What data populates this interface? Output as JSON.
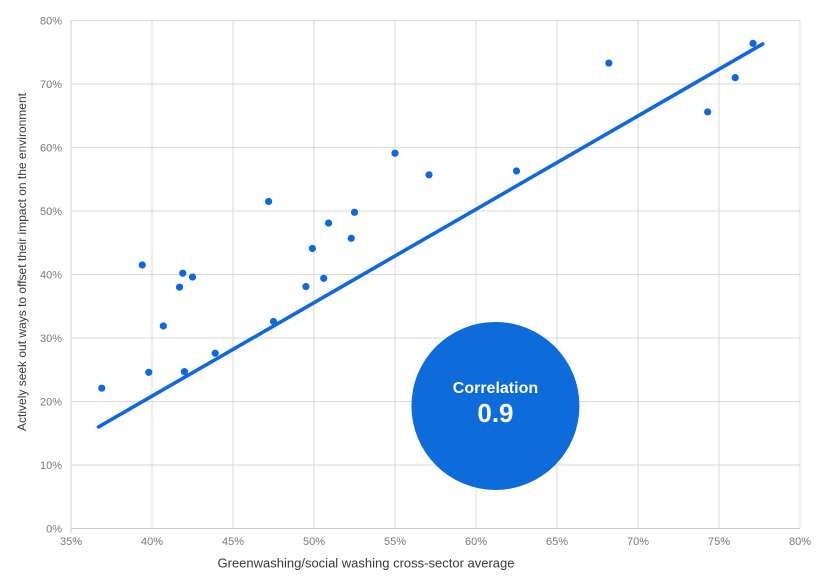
{
  "chart_data": {
    "type": "scatter",
    "title": "",
    "x_axis": {
      "title": "Greenwashing/social washing cross-sector average",
      "min": 35,
      "max": 80,
      "tick_labels": [
        "35%",
        "40%",
        "45%",
        "50%",
        "55%",
        "60%",
        "65%",
        "70%",
        "75%",
        "80%"
      ]
    },
    "y_axis": {
      "title": "Actively seek out ways to offset  their impact on the environment",
      "min": 0,
      "max": 80,
      "tick_labels": [
        "0%",
        "10%",
        "20%",
        "30%",
        "40%",
        "50%",
        "60%",
        "70%",
        "80%"
      ]
    },
    "grid": true,
    "legend": "none",
    "points": [
      [
        36.9,
        22.1
      ],
      [
        39.4,
        41.5
      ],
      [
        39.8,
        24.6
      ],
      [
        40.7,
        31.9
      ],
      [
        41.7,
        38.0
      ],
      [
        41.9,
        40.2
      ],
      [
        42.0,
        24.7
      ],
      [
        42.5,
        39.6
      ],
      [
        43.9,
        27.6
      ],
      [
        47.2,
        51.5
      ],
      [
        47.5,
        32.6
      ],
      [
        49.5,
        38.1
      ],
      [
        49.9,
        44.1
      ],
      [
        50.6,
        39.4
      ],
      [
        50.9,
        48.1
      ],
      [
        52.3,
        45.7
      ],
      [
        52.5,
        49.8
      ],
      [
        55.0,
        59.1
      ],
      [
        57.1,
        55.7
      ],
      [
        62.5,
        56.3
      ],
      [
        68.2,
        73.3
      ],
      [
        74.3,
        65.6
      ],
      [
        76.0,
        71.0
      ],
      [
        77.1,
        76.4
      ]
    ],
    "trendline": {
      "x1": 36.7,
      "y1": 16.0,
      "x2": 77.7,
      "y2": 76.3
    },
    "annotation": {
      "label": "Correlation",
      "value": "0.9",
      "center_x": 61.2,
      "center_y": 19.3,
      "radius_px": 84
    },
    "colors": {
      "background": "#ffffff",
      "point": "#1068e0",
      "trendline": "#1068e0",
      "annotation_circle": "#0e6bda",
      "annotation_text": "#ffffff",
      "gridline": "#dadada",
      "axis_line": "#cfcfcf",
      "tick_label": "#7a7a7a",
      "axis_title": "#3a3a3a"
    }
  }
}
